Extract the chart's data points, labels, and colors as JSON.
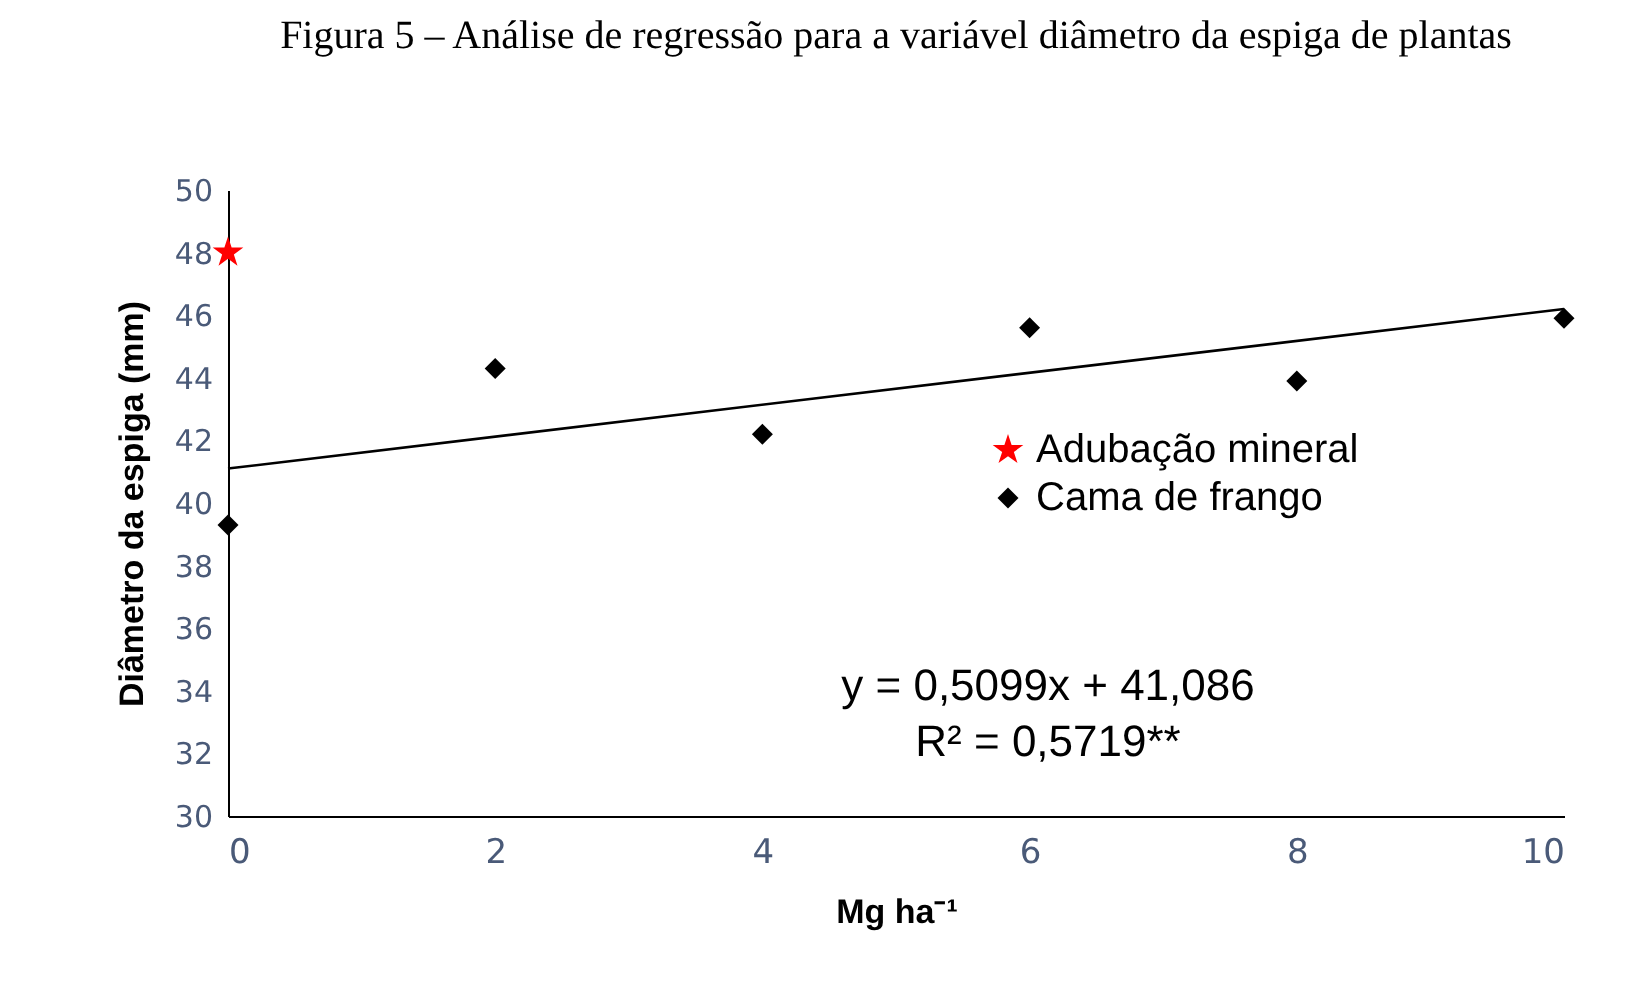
{
  "chart_data": {
    "type": "scatter",
    "title": "Figura 5 – Análise de regressão para a variável diâmetro da espiga de plantas",
    "xlabel": "Mg ha⁻¹",
    "ylabel": "Diâmetro da espiga (mm)",
    "xlim": [
      0,
      10
    ],
    "xticks": [
      0,
      2,
      4,
      6,
      8,
      10
    ],
    "ylim": [
      30,
      50
    ],
    "yticks": [
      30,
      32,
      34,
      36,
      38,
      40,
      42,
      44,
      46,
      48,
      50
    ],
    "grid": false,
    "legend": "right",
    "annotations": [
      "y = 0,5099x + 41,086",
      "R² = 0,5719**"
    ],
    "series": [
      {
        "name": "Adubação mineral",
        "type": "scatter",
        "marker": "star",
        "color": "#ff0000",
        "x": [
          0
        ],
        "values": [
          48.0
        ]
      },
      {
        "name": "Cama de frango",
        "type": "scatter",
        "marker": "diamond",
        "color": "#000000",
        "x": [
          0,
          2,
          4,
          6,
          8,
          10
        ],
        "values": [
          39.3,
          44.3,
          42.2,
          45.6,
          43.9,
          45.9
        ]
      },
      {
        "type": "line",
        "color": "#000000",
        "x": [
          0,
          10
        ],
        "values": [
          41.1,
          46.2
        ]
      }
    ]
  }
}
